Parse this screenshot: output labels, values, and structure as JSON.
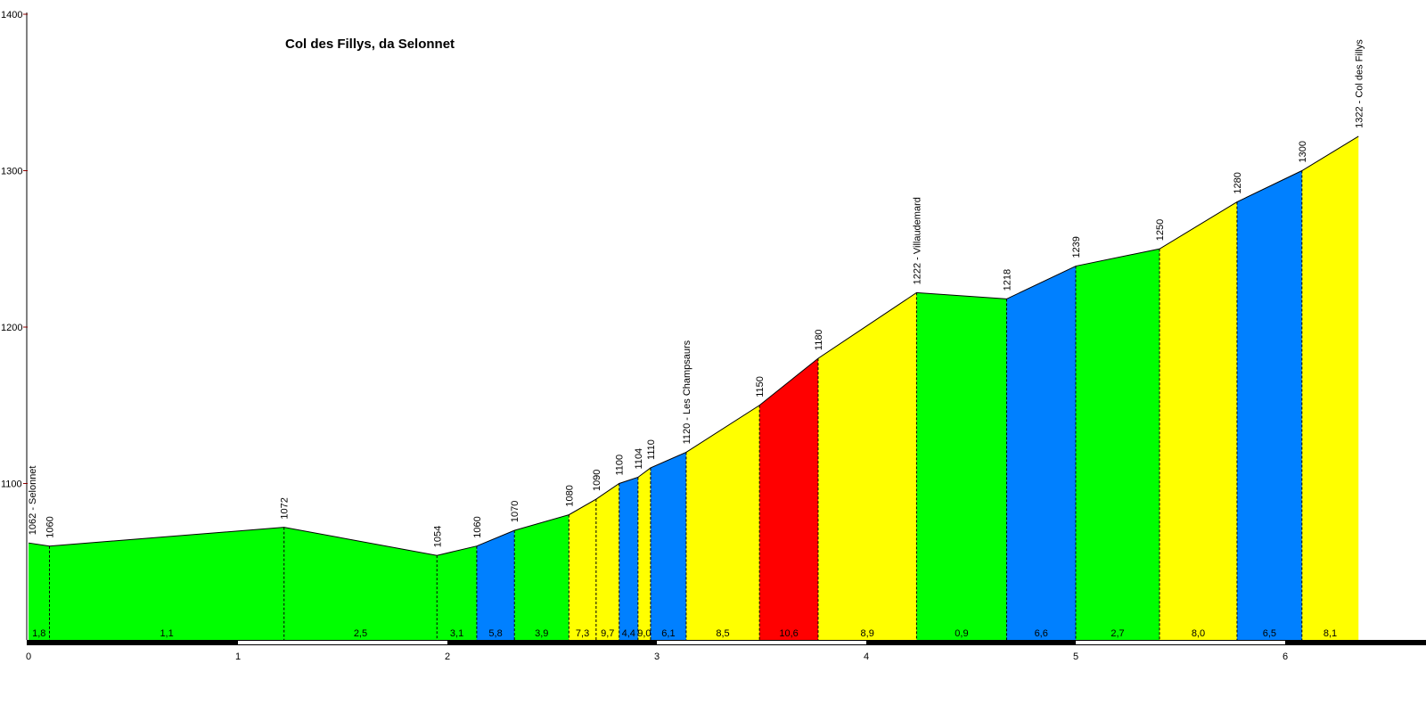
{
  "chart_data": {
    "type": "area",
    "title": "Col des Fillys, da Selonnet",
    "xlabel": "",
    "ylabel": "",
    "xlim": [
      0,
      6.8
    ],
    "ylim": [
      1000,
      1400
    ],
    "y_ticks": [
      1100,
      1200,
      1300,
      1400
    ],
    "x_ticks": [
      0,
      1,
      2,
      3,
      4,
      5,
      6
    ],
    "points": [
      {
        "x": 0.0,
        "elev": 1062,
        "label": "1062 - Selonnet"
      },
      {
        "x": 0.1,
        "elev": 1060,
        "label": "1060"
      },
      {
        "x": 1.22,
        "elev": 1072,
        "label": "1072"
      },
      {
        "x": 1.95,
        "elev": 1054,
        "label": "1054"
      },
      {
        "x": 2.14,
        "elev": 1060,
        "label": "1060"
      },
      {
        "x": 2.32,
        "elev": 1070,
        "label": "1070"
      },
      {
        "x": 2.58,
        "elev": 1080,
        "label": "1080"
      },
      {
        "x": 2.71,
        "elev": 1090,
        "label": "1090"
      },
      {
        "x": 2.82,
        "elev": 1100,
        "label": "1100"
      },
      {
        "x": 2.91,
        "elev": 1104,
        "label": "1104"
      },
      {
        "x": 2.97,
        "elev": 1110,
        "label": "1110"
      },
      {
        "x": 3.14,
        "elev": 1120,
        "label": "1120 - Les Champsaurs"
      },
      {
        "x": 3.49,
        "elev": 1150,
        "label": "1150"
      },
      {
        "x": 3.77,
        "elev": 1180,
        "label": "1180"
      },
      {
        "x": 4.24,
        "elev": 1222,
        "label": "1222 - Villaudemard"
      },
      {
        "x": 4.67,
        "elev": 1218,
        "label": "1218"
      },
      {
        "x": 5.0,
        "elev": 1239,
        "label": "1239"
      },
      {
        "x": 5.4,
        "elev": 1250,
        "label": "1250"
      },
      {
        "x": 5.77,
        "elev": 1280,
        "label": "1280"
      },
      {
        "x": 6.08,
        "elev": 1300,
        "label": "1300"
      },
      {
        "x": 6.35,
        "elev": 1322,
        "label": "1322 - Col des Fillys"
      }
    ],
    "segments": [
      {
        "grade": "1,8",
        "color": "#00ff00"
      },
      {
        "grade": "1,1",
        "color": "#00ff00"
      },
      {
        "grade": "2,5",
        "color": "#00ff00"
      },
      {
        "grade": "3,1",
        "color": "#00ff00"
      },
      {
        "grade": "5,8",
        "color": "#0080ff"
      },
      {
        "grade": "3,9",
        "color": "#00ff00"
      },
      {
        "grade": "7,3",
        "color": "#ffff00"
      },
      {
        "grade": "9,7",
        "color": "#ffff00"
      },
      {
        "grade": "4,4",
        "color": "#0080ff"
      },
      {
        "grade": "9,0",
        "color": "#ffff00"
      },
      {
        "grade": "6,1",
        "color": "#0080ff"
      },
      {
        "grade": "8,5",
        "color": "#ffff00"
      },
      {
        "grade": "10,6",
        "color": "#ff0000"
      },
      {
        "grade": "8,9",
        "color": "#ffff00"
      },
      {
        "grade": "0,9",
        "color": "#00ff00"
      },
      {
        "grade": "6,6",
        "color": "#0080ff"
      },
      {
        "grade": "2,7",
        "color": "#00ff00"
      },
      {
        "grade": "8,0",
        "color": "#ffff00"
      },
      {
        "grade": "6,5",
        "color": "#0080ff"
      },
      {
        "grade": "8,1",
        "color": "#ffff00"
      }
    ],
    "grid": false,
    "legend": "none"
  }
}
